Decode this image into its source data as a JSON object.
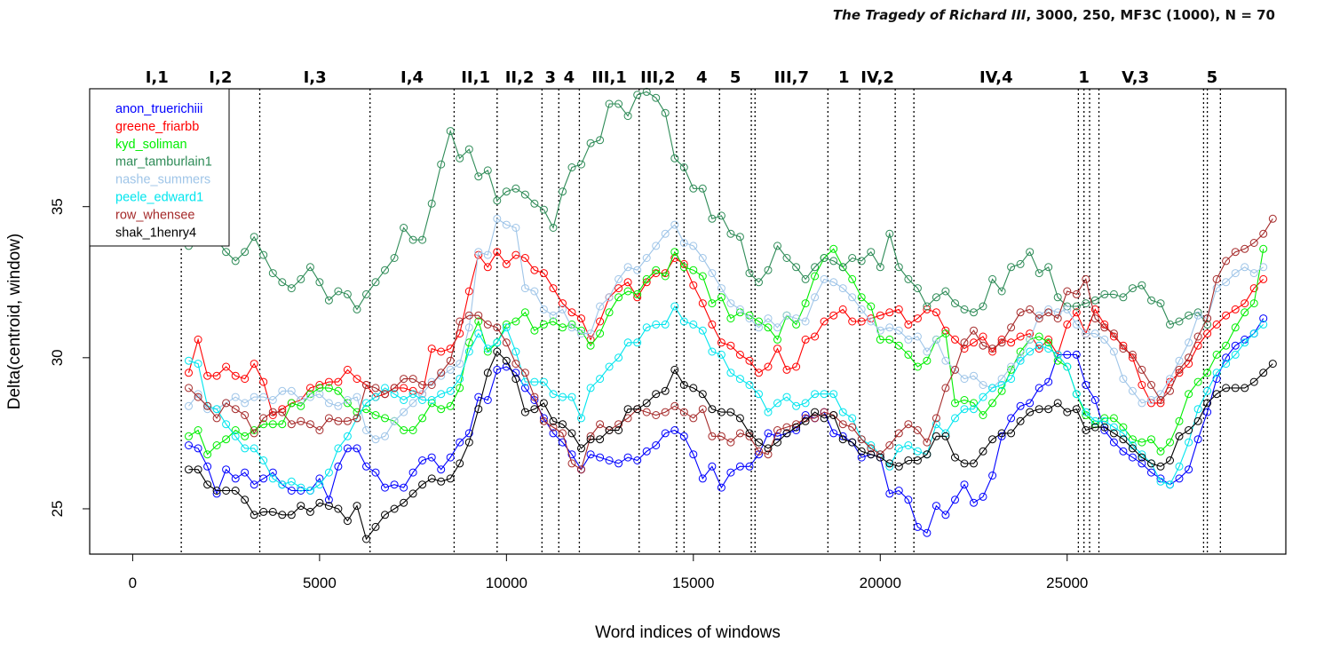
{
  "chart_data": {
    "type": "line",
    "title_italic": "The Tragedy of Richard III",
    "title_rest": ", 3000, 250, MF3C (1000), N = 70",
    "xlabel": "Word indices of windows",
    "ylabel": "Delta(centroid, window)",
    "xlim": [
      -1150,
      30850
    ],
    "ylim": [
      23.5,
      38.9
    ],
    "xticks": [
      0,
      5000,
      10000,
      15000,
      20000,
      25000
    ],
    "xtick_labels": [
      "0",
      "5000",
      "10000",
      "15000",
      "20000",
      "25000"
    ],
    "yticks": [
      25,
      30,
      35
    ],
    "ytick_labels": [
      "25",
      "30",
      "35"
    ],
    "legend_position": "top-left",
    "scenes": [
      {
        "label": "I,1",
        "start": 0,
        "end": 1300
      },
      {
        "label": "I,2",
        "start": 1300,
        "end": 3400
      },
      {
        "label": "I,3",
        "start": 3400,
        "end": 6350
      },
      {
        "label": "I,4",
        "start": 6350,
        "end": 8600
      },
      {
        "label": "II,1",
        "start": 8600,
        "end": 9750
      },
      {
        "label": "II,2",
        "start": 9750,
        "end": 10950
      },
      {
        "label": "3",
        "start": 10950,
        "end": 11400
      },
      {
        "label": "4",
        "start": 11400,
        "end": 11950
      },
      {
        "label": "III,1",
        "start": 11950,
        "end": 13550
      },
      {
        "label": "III,2",
        "start": 13550,
        "end": 14550
      },
      {
        "label": "4",
        "start": 14750,
        "end": 15700
      },
      {
        "label": "5",
        "start": 15700,
        "end": 16550
      },
      {
        "label": "III,7",
        "start": 16650,
        "end": 18600
      },
      {
        "label": "1",
        "start": 18600,
        "end": 19450
      },
      {
        "label": "IV,2",
        "start": 19450,
        "end": 20400
      },
      {
        "label": "IV,4",
        "start": 20900,
        "end": 25300
      },
      {
        "label": "1",
        "start": 25300,
        "end": 25600
      },
      {
        "label": "V,3",
        "start": 25850,
        "end": 27800
      },
      {
        "label": "5",
        "start": 28650,
        "end": 29100
      }
    ],
    "act_boundaries": [
      1300,
      3400,
      6350,
      8600,
      9750,
      10950,
      11400,
      11950,
      13550,
      14550,
      14750,
      15700,
      16550,
      16650,
      18600,
      19450,
      20400,
      20900,
      25300,
      25450,
      25600,
      25850,
      28650,
      28750,
      29100
    ],
    "x_start": 1500,
    "x_step": 250,
    "series": [
      {
        "name": "anon_truerichiii",
        "color": "#0000ff",
        "values": [
          27.1,
          27.0,
          26.4,
          25.5,
          26.3,
          26.0,
          26.2,
          25.8,
          26.0,
          26.2,
          25.8,
          25.6,
          25.6,
          25.6,
          26.0,
          25.3,
          26.4,
          27.0,
          27.0,
          26.4,
          26.2,
          25.7,
          25.8,
          25.7,
          26.2,
          26.6,
          26.7,
          26.3,
          26.7,
          27.2,
          27.5,
          28.7,
          28.6,
          29.6,
          29.7,
          29.5,
          29.0,
          28.6,
          28.0,
          27.5,
          27.2,
          26.8,
          26.3,
          26.8,
          26.7,
          26.6,
          26.5,
          26.7,
          26.6,
          26.9,
          27.1,
          27.5,
          27.6,
          27.4,
          26.8,
          26.0,
          26.4,
          25.7,
          26.2,
          26.4,
          26.4,
          26.8,
          27.5,
          27.4,
          27.5,
          27.6,
          28.1,
          28.0,
          28.2,
          27.5,
          27.4,
          27.2,
          26.7,
          26.8,
          26.7,
          25.5,
          25.6,
          25.3,
          24.4,
          24.2,
          25.1,
          24.8,
          25.3,
          25.8,
          25.2,
          25.4,
          26.1,
          27.4,
          28.0,
          28.4,
          28.5,
          29.0,
          29.2,
          30.1,
          30.1,
          30.1,
          29.1,
          28.6,
          27.6,
          27.2,
          26.9,
          26.7,
          26.5,
          26.2,
          26.0,
          25.8,
          26.0,
          26.3,
          27.3,
          28.2,
          29.3,
          30.0,
          30.4,
          30.6,
          30.8,
          31.3
        ]
      },
      {
        "name": "greene_friarbb",
        "color": "#ff0000",
        "values": [
          29.5,
          30.6,
          29.4,
          29.4,
          29.7,
          29.4,
          29.3,
          29.8,
          29.2,
          28.1,
          28.3,
          28.5,
          28.6,
          29.0,
          29.1,
          29.2,
          29.2,
          29.6,
          29.3,
          29.1,
          28.7,
          28.8,
          29.0,
          29.0,
          28.9,
          28.8,
          30.3,
          30.2,
          30.3,
          30.8,
          32.2,
          33.4,
          33.0,
          33.5,
          33.1,
          33.4,
          33.3,
          32.9,
          32.8,
          32.3,
          31.8,
          31.5,
          31.3,
          30.6,
          31.2,
          32.0,
          32.3,
          32.5,
          32.0,
          32.5,
          32.8,
          32.8,
          33.3,
          33.1,
          32.4,
          31.8,
          31.1,
          30.5,
          30.4,
          30.1,
          29.9,
          29.5,
          29.7,
          30.3,
          29.6,
          29.7,
          30.6,
          30.7,
          31.2,
          31.4,
          31.6,
          31.2,
          31.2,
          31.3,
          31.4,
          31.5,
          31.6,
          31.1,
          31.3,
          31.6,
          31.5,
          30.9,
          30.6,
          30.3,
          30.5,
          30.7,
          30.2,
          30.6,
          30.5,
          30.7,
          30.8,
          30.3,
          30.6,
          30.1,
          31.1,
          31.5,
          30.8,
          31.6,
          31.1,
          30.7,
          30.4,
          30.0,
          29.1,
          28.5,
          28.5,
          29.2,
          29.5,
          29.8,
          30.4,
          30.8,
          31.1,
          31.4,
          31.6,
          31.8,
          32.3,
          32.6
        ]
      },
      {
        "name": "kyd_soliman",
        "color": "#00ee00",
        "values": [
          27.4,
          27.6,
          26.8,
          27.1,
          27.3,
          27.6,
          27.4,
          27.6,
          27.8,
          27.8,
          27.8,
          28.5,
          28.4,
          28.8,
          29.0,
          29.0,
          28.9,
          28.5,
          28.2,
          28.3,
          28.1,
          28.0,
          27.9,
          27.6,
          27.6,
          28.0,
          28.5,
          28.3,
          28.4,
          29.0,
          30.5,
          31.2,
          30.2,
          30.5,
          31.1,
          31.2,
          31.5,
          30.9,
          31.1,
          31.2,
          31.0,
          31.1,
          30.9,
          30.4,
          30.8,
          31.5,
          32.0,
          32.2,
          32.1,
          32.6,
          32.9,
          32.7,
          33.5,
          33.0,
          32.9,
          32.7,
          31.8,
          32.0,
          31.3,
          31.5,
          31.4,
          31.2,
          31.0,
          30.6,
          31.4,
          31.1,
          31.8,
          32.7,
          33.3,
          33.6,
          33.0,
          32.6,
          32.0,
          31.7,
          30.6,
          30.6,
          30.4,
          30.1,
          29.7,
          29.9,
          30.6,
          30.8,
          28.5,
          28.6,
          28.5,
          28.1,
          28.5,
          28.9,
          29.6,
          30.2,
          30.6,
          30.7,
          30.5,
          29.9,
          29.7,
          28.8,
          28.1,
          27.8,
          28.0,
          28.0,
          27.7,
          27.3,
          27.2,
          27.3,
          26.9,
          27.2,
          27.9,
          28.8,
          29.2,
          29.5,
          30.1,
          30.4,
          31.0,
          31.5,
          31.8,
          33.6
        ]
      },
      {
        "name": "mar_tamburlain1",
        "color": "#2e8b57",
        "values": [
          33.7,
          34.0,
          33.9,
          33.9,
          33.5,
          33.2,
          33.5,
          34.0,
          33.4,
          32.8,
          32.5,
          32.3,
          32.6,
          33.0,
          32.5,
          31.9,
          32.2,
          32.1,
          31.6,
          32.1,
          32.5,
          32.9,
          33.3,
          34.3,
          33.9,
          33.9,
          35.1,
          36.4,
          37.5,
          36.6,
          36.9,
          36.0,
          36.2,
          35.2,
          35.5,
          35.6,
          35.4,
          35.1,
          34.9,
          34.3,
          35.5,
          36.3,
          36.4,
          37.1,
          37.2,
          38.4,
          38.4,
          38.0,
          38.7,
          38.8,
          38.6,
          38.1,
          36.6,
          36.3,
          35.6,
          35.6,
          34.6,
          34.7,
          34.1,
          34.0,
          32.8,
          32.5,
          32.9,
          33.7,
          33.3,
          33.0,
          32.6,
          33.0,
          33.3,
          33.2,
          33.0,
          33.3,
          33.2,
          33.5,
          33.0,
          34.1,
          33.0,
          32.6,
          32.3,
          31.7,
          32.0,
          32.2,
          31.8,
          31.6,
          31.5,
          31.7,
          32.6,
          32.2,
          33.0,
          33.1,
          33.5,
          32.8,
          33.0,
          32.0,
          31.7,
          31.7,
          31.8,
          31.9,
          32.1,
          32.1,
          32.0,
          32.3,
          32.4,
          31.9,
          31.8,
          31.1,
          31.2,
          31.4,
          31.5,
          31.1
        ]
      },
      {
        "name": "nashe_summers",
        "color": "#9fc5e8",
        "values": [
          28.4,
          28.8,
          28.3,
          28.3,
          28.5,
          28.7,
          28.5,
          28.7,
          28.7,
          28.6,
          28.9,
          28.9,
          28.6,
          28.7,
          28.8,
          28.5,
          28.4,
          28.6,
          28.7,
          27.6,
          27.3,
          27.4,
          27.9,
          28.2,
          28.5,
          28.8,
          29.2,
          29.4,
          29.6,
          29.8,
          31.0,
          33.5,
          33.4,
          34.6,
          34.4,
          34.3,
          32.3,
          32.2,
          31.6,
          31.4,
          31.6,
          31.0,
          30.8,
          30.8,
          31.7,
          32.0,
          32.6,
          33.0,
          32.9,
          33.3,
          33.7,
          34.1,
          34.4,
          33.8,
          33.7,
          33.3,
          32.8,
          32.3,
          31.8,
          31.6,
          31.3,
          31.0,
          31.3,
          31.0,
          31.4,
          31.3,
          31.2,
          32.0,
          32.6,
          32.5,
          32.3,
          32.0,
          31.6,
          31.2,
          30.9,
          31.0,
          30.9,
          30.6,
          30.7,
          30.2,
          30.6,
          29.9,
          29.6,
          29.3,
          29.4,
          29.1,
          29.0,
          29.3,
          29.7,
          30.0,
          30.6,
          31.4,
          31.6,
          31.5,
          31.6,
          31.1,
          30.8,
          30.8,
          30.6,
          30.2,
          29.3,
          28.9,
          28.5,
          28.6,
          28.8,
          29.3,
          29.9,
          30.5,
          31.4,
          31.3,
          32.3,
          32.5,
          32.8,
          33.0,
          32.8,
          33.0
        ]
      },
      {
        "name": "peele_edward1",
        "color": "#00e5ee",
        "values": [
          29.9,
          29.8,
          28.4,
          28.3,
          27.8,
          27.4,
          27.0,
          27.0,
          26.6,
          26.0,
          25.8,
          25.9,
          25.7,
          25.6,
          25.8,
          26.2,
          27.0,
          27.4,
          28.0,
          28.5,
          28.7,
          29.0,
          28.8,
          28.6,
          28.8,
          28.6,
          28.6,
          28.8,
          28.9,
          29.3,
          30.2,
          30.8,
          30.3,
          30.5,
          31.0,
          30.2,
          29.2,
          29.2,
          29.2,
          28.8,
          28.7,
          28.7,
          28.0,
          29.0,
          29.3,
          29.7,
          30.0,
          30.5,
          30.5,
          31.0,
          31.1,
          31.1,
          31.7,
          31.2,
          31.1,
          30.9,
          30.2,
          30.1,
          29.5,
          29.3,
          29.1,
          28.8,
          28.2,
          28.5,
          28.7,
          28.4,
          28.5,
          28.8,
          28.8,
          28.8,
          28.2,
          28.0,
          27.3,
          27.1,
          26.8,
          26.4,
          27.0,
          27.1,
          26.9,
          26.8,
          27.8,
          27.5,
          28.0,
          28.3,
          28.3,
          28.7,
          29.0,
          29.1,
          29.3,
          29.9,
          30.2,
          30.4,
          30.3,
          30.1,
          29.7,
          28.8,
          28.2,
          27.9,
          27.9,
          27.7,
          27.5,
          27.1,
          26.8,
          26.5,
          25.9,
          25.8,
          26.4,
          27.2,
          28.3,
          28.9,
          29.5,
          29.8,
          30.1,
          30.5,
          30.8,
          31.1
        ]
      },
      {
        "name": "row_whensee",
        "color": "#a52a2a",
        "values": [
          29.0,
          28.7,
          28.4,
          28.0,
          28.5,
          28.3,
          28.1,
          27.5,
          28.0,
          28.2,
          28.2,
          27.8,
          27.9,
          27.8,
          27.6,
          28.0,
          27.9,
          27.9,
          28.0,
          29.1,
          29.0,
          28.8,
          29.0,
          29.3,
          29.3,
          29.1,
          29.1,
          29.5,
          29.9,
          31.2,
          31.4,
          31.4,
          31.1,
          31.0,
          30.5,
          29.8,
          29.5,
          28.7,
          27.9,
          27.7,
          27.5,
          26.5,
          26.3,
          27.4,
          27.8,
          27.6,
          27.8,
          28.0,
          28.3,
          28.2,
          28.1,
          28.2,
          28.4,
          28.2,
          28.0,
          28.3,
          27.4,
          27.4,
          27.2,
          27.5,
          27.4,
          26.9,
          26.8,
          27.6,
          27.7,
          27.8,
          28.0,
          28.0,
          28.2,
          28.1,
          27.8,
          27.7,
          27.3,
          27.0,
          26.8,
          27.1,
          27.5,
          27.8,
          27.6,
          27.2,
          28.0,
          29.0,
          29.6,
          30.5,
          30.9,
          30.4,
          30.3,
          30.5,
          31.0,
          31.5,
          31.6,
          31.3,
          31.5,
          31.3,
          32.2,
          32.1,
          32.6,
          31.3,
          31.0,
          30.8,
          30.3,
          30.1,
          29.6,
          29.1,
          28.6,
          28.9,
          29.6,
          30.0,
          30.7,
          31.3,
          32.6,
          33.2,
          33.5,
          33.6,
          33.8,
          34.1,
          34.6
        ]
      },
      {
        "name": "shak_1henry4",
        "color": "#000000",
        "values": [
          26.3,
          26.3,
          25.8,
          25.6,
          25.6,
          25.6,
          25.3,
          24.8,
          24.9,
          24.9,
          24.8,
          24.8,
          25.1,
          24.9,
          25.2,
          25.1,
          25.0,
          24.6,
          25.1,
          24.0,
          24.4,
          24.8,
          25.0,
          25.2,
          25.5,
          25.8,
          26.0,
          25.9,
          26.0,
          26.5,
          27.2,
          28.3,
          29.5,
          30.2,
          29.9,
          29.3,
          28.2,
          28.3,
          28.5,
          27.9,
          27.8,
          27.5,
          27.0,
          27.3,
          27.3,
          27.6,
          27.6,
          28.3,
          28.3,
          28.5,
          28.8,
          28.9,
          29.6,
          29.1,
          29.0,
          28.8,
          28.3,
          28.2,
          28.2,
          28.0,
          27.5,
          27.2,
          27.0,
          27.2,
          27.5,
          27.7,
          27.9,
          28.2,
          28.0,
          28.1,
          27.3,
          27.2,
          26.9,
          26.8,
          26.7,
          26.5,
          26.4,
          26.6,
          26.6,
          26.8,
          27.4,
          27.4,
          26.7,
          26.5,
          26.5,
          26.9,
          27.3,
          27.5,
          27.5,
          27.9,
          28.2,
          28.3,
          28.3,
          28.5,
          28.2,
          28.3,
          27.6,
          27.7,
          27.7,
          27.5,
          27.3,
          27.0,
          26.7,
          26.5,
          26.4,
          26.6,
          27.4,
          27.6,
          27.9,
          28.5,
          28.8,
          29.0,
          29.0,
          29.0,
          29.2,
          29.5,
          29.8
        ]
      }
    ]
  }
}
